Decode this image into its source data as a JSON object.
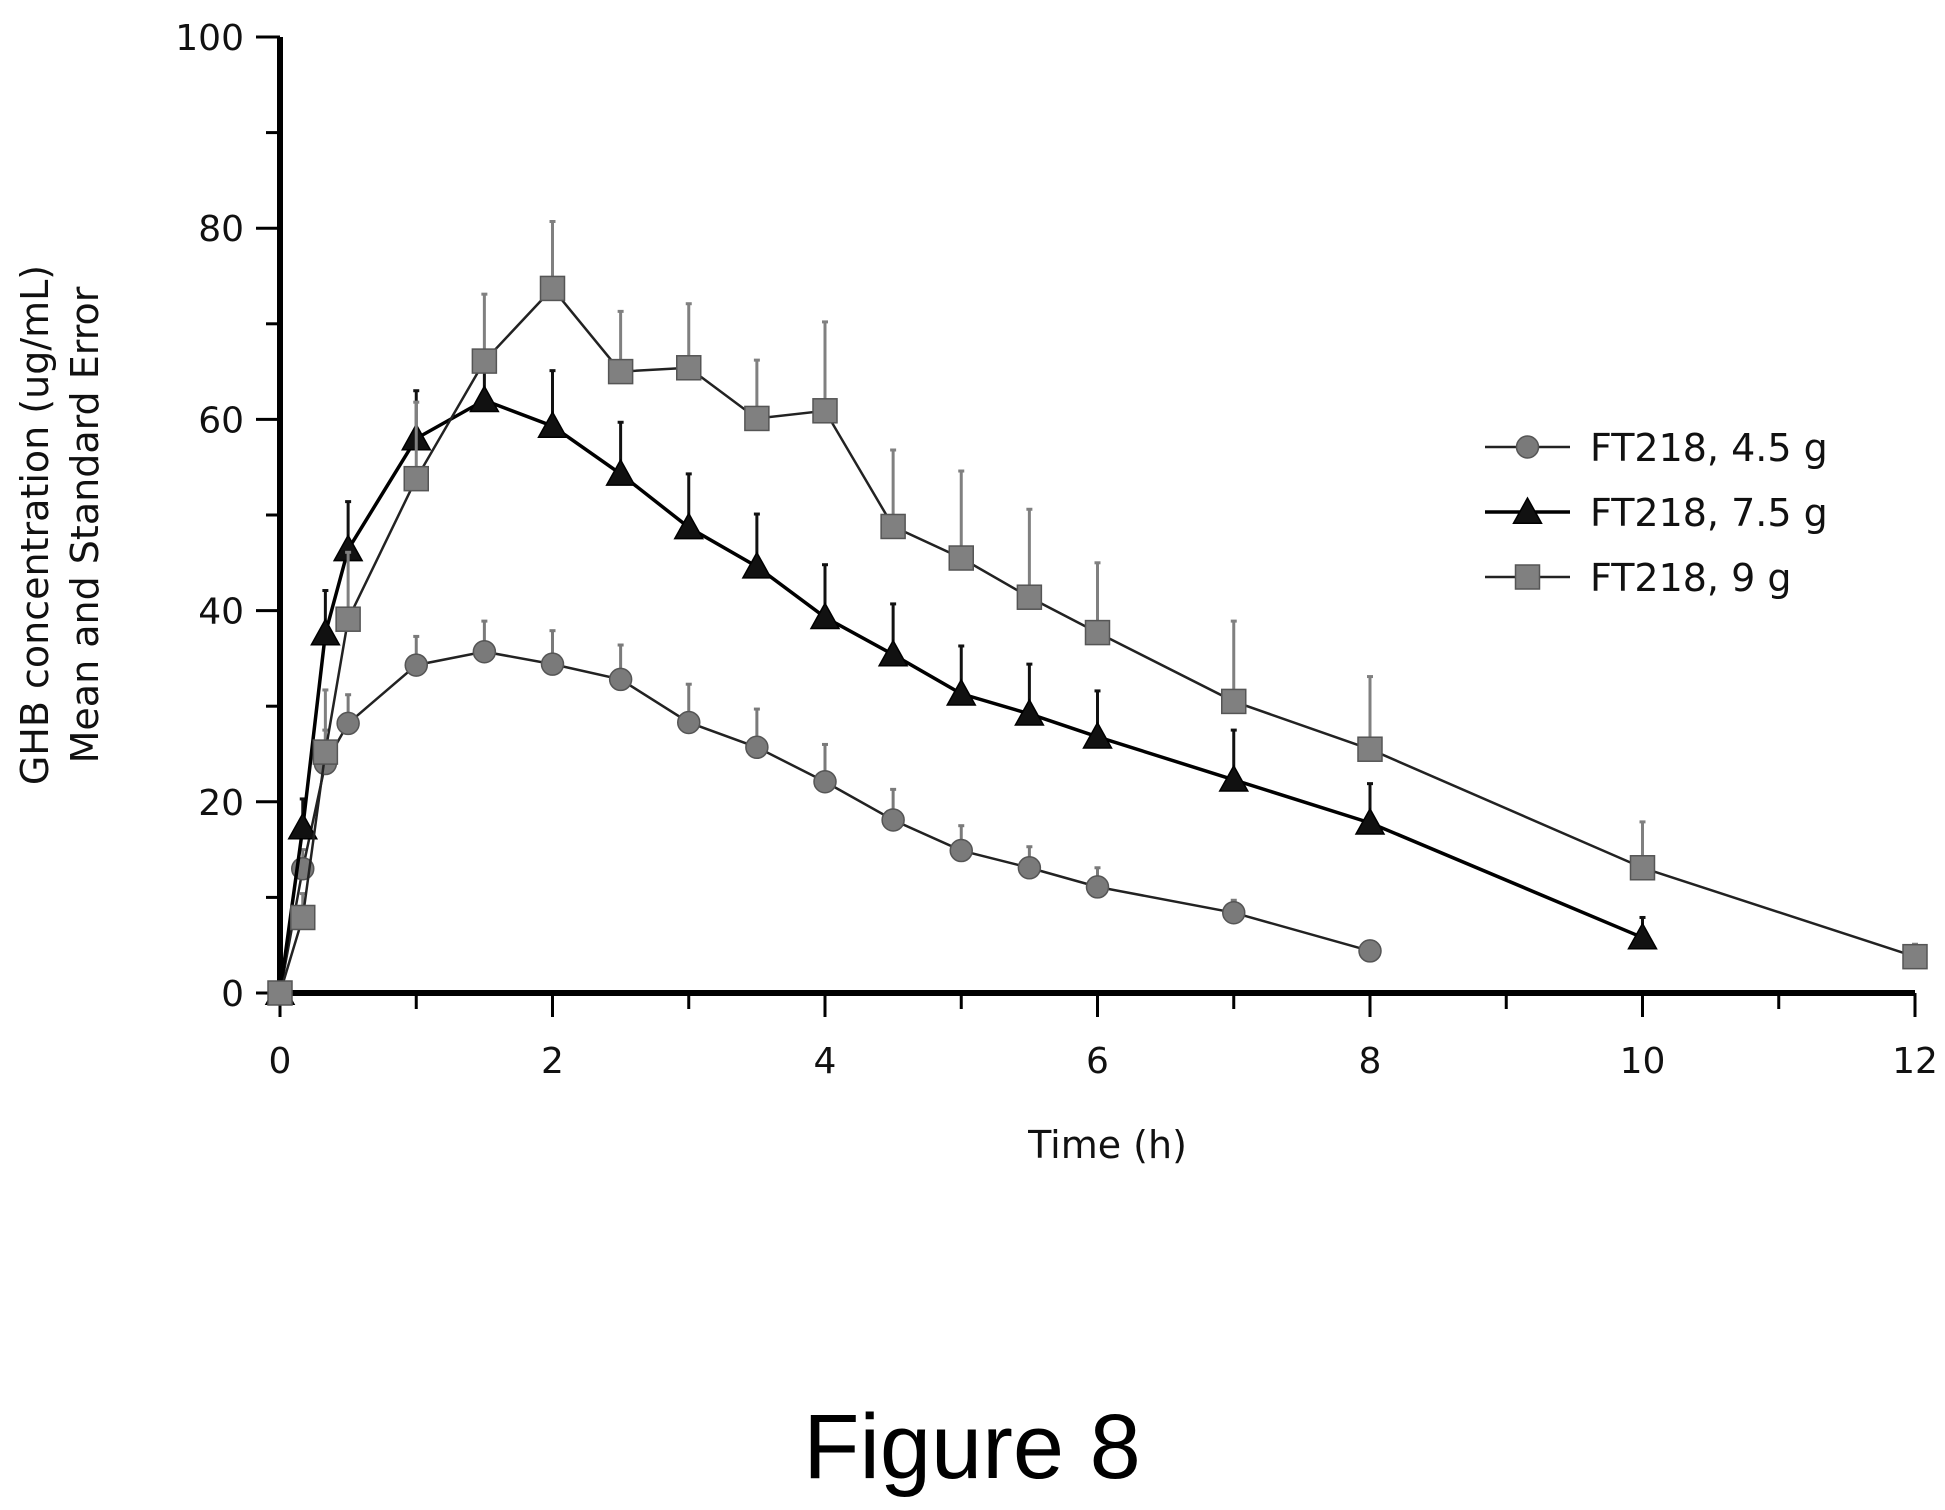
{
  "chart_data": {
    "type": "line",
    "title": "",
    "xlabel": "Time (h)",
    "ylabel": [
      "GHB concentration (ug/mL)",
      "Mean and Standard Error"
    ],
    "xlim": [
      0,
      12
    ],
    "ylim": [
      0,
      100
    ],
    "xticks": [
      "0",
      "2",
      "4",
      "6",
      "8",
      "10",
      "12"
    ],
    "yticks": [
      "0",
      "20",
      "40",
      "60",
      "80",
      "100"
    ],
    "grid": false,
    "legend_position": "right",
    "series": [
      {
        "name": "FT218, 4.5 g",
        "marker": "circle",
        "color": "#7a7a7a",
        "x": [
          0,
          0.167,
          0.333,
          0.5,
          1,
          1.5,
          2,
          2.5,
          3,
          3.5,
          4,
          4.5,
          5,
          5.5,
          6,
          7,
          8
        ],
        "y": [
          0,
          13,
          24,
          28.2,
          34.3,
          35.7,
          34.4,
          32.8,
          28.3,
          25.7,
          22.1,
          18.1,
          14.9,
          13.1,
          11.1,
          8.4,
          4.4
        ],
        "err": [
          0,
          2,
          3.5,
          3,
          3,
          3.2,
          3.5,
          3.6,
          4,
          4,
          3.9,
          3.2,
          2.6,
          2.2,
          2,
          1.3,
          0
        ]
      },
      {
        "name": "FT218, 7.5 g",
        "marker": "triangle",
        "color": "#111111",
        "x": [
          0,
          0.167,
          0.333,
          0.5,
          1,
          1.5,
          2,
          2.5,
          3,
          3.5,
          4,
          4.5,
          5,
          5.5,
          6,
          7,
          8,
          10
        ],
        "y": [
          0,
          17.3,
          37.6,
          46.4,
          58,
          62,
          59.3,
          54.3,
          48.7,
          44.6,
          39.3,
          35.4,
          31.3,
          29.2,
          26.8,
          22.3,
          17.8,
          5.8
        ],
        "err": [
          0,
          3,
          4.5,
          5,
          5,
          4.5,
          5.8,
          5.4,
          5.6,
          5.5,
          5.5,
          5.3,
          5,
          5.2,
          4.8,
          5.2,
          4.1,
          2.1
        ]
      },
      {
        "name": "FT218, 9 g",
        "marker": "square",
        "color": "#808080",
        "x": [
          0,
          0.167,
          0.333,
          0.5,
          1,
          1.5,
          2,
          2.5,
          3,
          3.5,
          4,
          4.5,
          5,
          5.5,
          6,
          7,
          8,
          10,
          12
        ],
        "y": [
          0,
          7.9,
          25.2,
          39.1,
          53.8,
          66.1,
          73.7,
          65,
          65.4,
          60.1,
          60.9,
          48.8,
          45.5,
          41.4,
          37.7,
          30.5,
          25.5,
          13.1,
          3.8
        ],
        "err": [
          0,
          2.5,
          6.5,
          7,
          8,
          7,
          7,
          6.3,
          6.7,
          6.1,
          9.3,
          8,
          9.1,
          9.2,
          7.3,
          8.4,
          7.6,
          4.8,
          1.3
        ]
      }
    ]
  },
  "caption": "Figure 8"
}
